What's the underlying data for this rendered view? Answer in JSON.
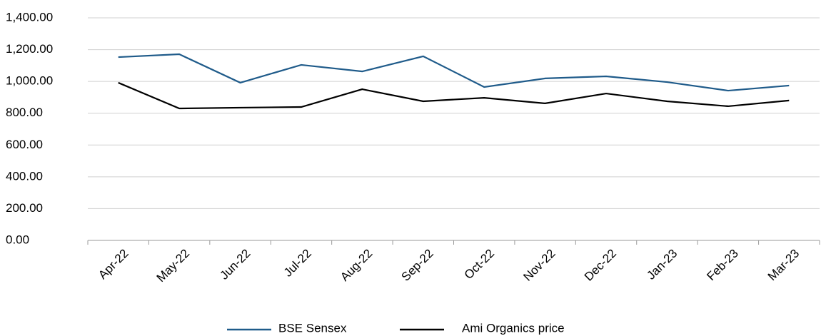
{
  "chart_data": {
    "type": "line",
    "categories": [
      "Apr-22",
      "May-22",
      "Jun-22",
      "Jul-22",
      "Aug-22",
      "Sep-22",
      "Oct-22",
      "Nov-22",
      "Dec-22",
      "Jan-23",
      "Feb-23",
      "Mar-23"
    ],
    "series": [
      {
        "name": "BSE Sensex",
        "color": "#1f5b8a",
        "values": [
          1153,
          1171,
          992,
          1104,
          1063,
          1158,
          965,
          1019,
          1032,
          996,
          942,
          974
        ]
      },
      {
        "name": "Ami Organics price",
        "color": "#000000",
        "values": [
          992,
          830,
          835,
          839,
          951,
          875,
          897,
          862,
          924,
          875,
          844,
          880
        ]
      }
    ],
    "ylim": [
      0,
      1400
    ],
    "yticks": [
      {
        "value": 0,
        "label": "0.00"
      },
      {
        "value": 200,
        "label": "200.00"
      },
      {
        "value": 400,
        "label": "400.00"
      },
      {
        "value": 600,
        "label": "600.00"
      },
      {
        "value": 800,
        "label": "800.00"
      },
      {
        "value": 1000,
        "label": "1,000.00"
      },
      {
        "value": 1200,
        "label": "1,200.00"
      },
      {
        "value": 1400,
        "label": "1,400.00"
      }
    ],
    "grid": true,
    "legend": "bottom"
  }
}
